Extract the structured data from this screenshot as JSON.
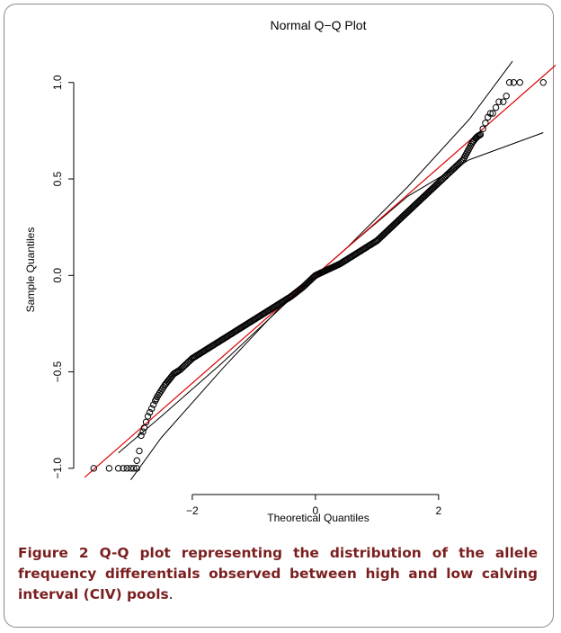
{
  "chart_data": {
    "type": "scatter",
    "title": "Normal Q−Q Plot",
    "xlabel": "Theoretical Quantiles",
    "ylabel": "Sample Quantiles",
    "xlim": [
      -3.75,
      3.9
    ],
    "ylim": [
      -1.08,
      1.12
    ],
    "xticks": [
      -2,
      0,
      2
    ],
    "xtick_labels": [
      "−2",
      "0",
      "2"
    ],
    "yticks": [
      -1.0,
      -0.5,
      0.0,
      0.5,
      1.0
    ],
    "ytick_labels": [
      "−1.0",
      "−0.5",
      "0.0",
      "0.5",
      "1.0"
    ],
    "grid": false,
    "legend": "none",
    "series": [
      {
        "marker": "open-circle",
        "color": "#000000",
        "points": [
          [
            -3.6,
            -1.0
          ],
          [
            -3.35,
            -1.0
          ],
          [
            -3.2,
            -1.0
          ],
          [
            -3.12,
            -1.0
          ],
          [
            -3.06,
            -1.0
          ],
          [
            -3.0,
            -1.0
          ],
          [
            -2.95,
            -1.0
          ],
          [
            -2.9,
            -1.0
          ],
          [
            -2.9,
            -0.96
          ],
          [
            -2.86,
            -0.91
          ],
          [
            -2.83,
            -0.83
          ],
          [
            -2.8,
            -0.81
          ],
          [
            -2.78,
            -0.79
          ],
          [
            -2.75,
            -0.76
          ],
          [
            -2.72,
            -0.73
          ],
          [
            -2.69,
            -0.71
          ],
          [
            -2.66,
            -0.69
          ],
          [
            -2.63,
            -0.67
          ],
          [
            -2.6,
            -0.65
          ],
          [
            -2.57,
            -0.63
          ],
          [
            -2.53,
            -0.61
          ],
          [
            -2.49,
            -0.59
          ],
          [
            -2.45,
            -0.57
          ],
          [
            -2.4,
            -0.55
          ],
          [
            -2.35,
            -0.53
          ],
          [
            -2.3,
            -0.51
          ],
          [
            -2.2,
            -0.49
          ],
          [
            -2.1,
            -0.46
          ],
          [
            -2.0,
            -0.43
          ],
          [
            -1.8,
            -0.39
          ],
          [
            -1.6,
            -0.35
          ],
          [
            -1.4,
            -0.31
          ],
          [
            -1.2,
            -0.27
          ],
          [
            -1.0,
            -0.23
          ],
          [
            -0.8,
            -0.19
          ],
          [
            -0.6,
            -0.15
          ],
          [
            -0.4,
            -0.11
          ],
          [
            -0.2,
            -0.06
          ],
          [
            0.0,
            0.0
          ],
          [
            0.2,
            0.03
          ],
          [
            0.4,
            0.06
          ],
          [
            0.6,
            0.1
          ],
          [
            0.8,
            0.14
          ],
          [
            1.0,
            0.18
          ],
          [
            1.2,
            0.24
          ],
          [
            1.4,
            0.3
          ],
          [
            1.6,
            0.36
          ],
          [
            1.8,
            0.42
          ],
          [
            2.0,
            0.48
          ],
          [
            2.1,
            0.51
          ],
          [
            2.2,
            0.54
          ],
          [
            2.3,
            0.57
          ],
          [
            2.4,
            0.6
          ],
          [
            2.45,
            0.63
          ],
          [
            2.5,
            0.66
          ],
          [
            2.55,
            0.69
          ],
          [
            2.6,
            0.71
          ],
          [
            2.63,
            0.72
          ],
          [
            2.68,
            0.73
          ],
          [
            2.72,
            0.76
          ],
          [
            2.76,
            0.79
          ],
          [
            2.8,
            0.82
          ],
          [
            2.84,
            0.84
          ],
          [
            2.88,
            0.84
          ],
          [
            2.93,
            0.87
          ],
          [
            2.98,
            0.9
          ],
          [
            3.05,
            0.9
          ],
          [
            3.1,
            0.93
          ],
          [
            3.15,
            1.0
          ],
          [
            3.22,
            1.0
          ],
          [
            3.32,
            1.0
          ],
          [
            3.7,
            1.0
          ]
        ]
      }
    ],
    "reference_line": {
      "color": "#dd0000",
      "slope": 0.2793,
      "intercept": 0.0
    },
    "envelope": {
      "color": "#000000",
      "upper": [
        [
          -3.2,
          -0.92
        ],
        [
          -2.5,
          -0.73
        ],
        [
          -1.5,
          -0.45
        ],
        [
          -0.5,
          -0.15
        ],
        [
          0.0,
          0.0
        ],
        [
          0.5,
          0.14
        ],
        [
          1.5,
          0.46
        ],
        [
          2.5,
          0.81
        ],
        [
          3.2,
          1.11
        ]
      ],
      "lower": [
        [
          -3.0,
          -1.06
        ],
        [
          -2.5,
          -0.84
        ],
        [
          -1.5,
          -0.48
        ],
        [
          -0.5,
          -0.14
        ],
        [
          0.0,
          0.0
        ],
        [
          0.5,
          0.14
        ],
        [
          1.5,
          0.41
        ],
        [
          2.5,
          0.6
        ],
        [
          3.7,
          0.74
        ]
      ]
    }
  },
  "caption": {
    "label": "Figure 2",
    "text": "Q-Q plot representing the distribution of the allele frequency differentials observed between high and low calving interval (CIV) pools",
    "period": "."
  }
}
